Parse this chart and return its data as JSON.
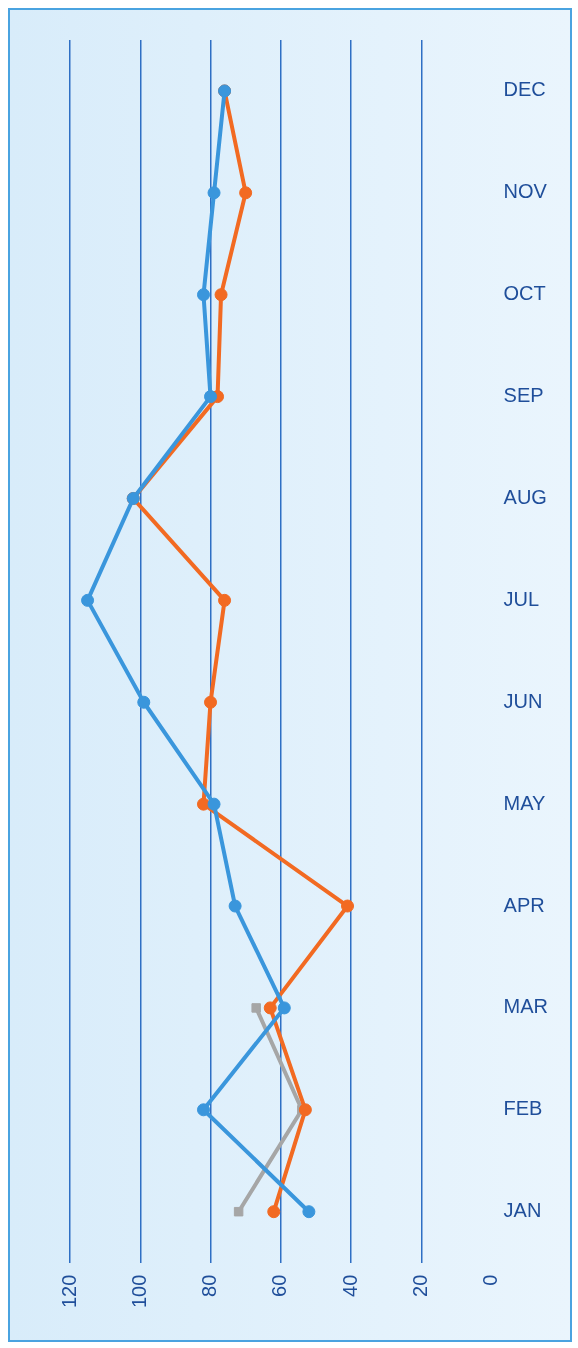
{
  "chart_data": {
    "type": "line",
    "orientation": "horizontal",
    "categories": [
      "DEC",
      "NOV",
      "OCT",
      "SEP",
      "AUG",
      "JUL",
      "JUN",
      "MAY",
      "APR",
      "MAR",
      "FEB",
      "JAN"
    ],
    "series": [
      {
        "color": "#3a96dc",
        "marker": "circle",
        "values": [
          76,
          79,
          82,
          80,
          102,
          115,
          99,
          79,
          73,
          59,
          82,
          52
        ]
      },
      {
        "color": "#f26a22",
        "marker": "circle",
        "values": [
          76,
          70,
          77,
          78,
          102,
          76,
          80,
          82,
          41,
          63,
          53,
          62
        ]
      },
      {
        "color": "#a6a6a6",
        "marker": "square",
        "values": [
          null,
          null,
          null,
          null,
          null,
          null,
          null,
          null,
          null,
          67,
          54,
          72
        ]
      }
    ],
    "xlim": [
      120,
      0
    ],
    "xticks": [
      0,
      20,
      40,
      60,
      80,
      100,
      120
    ],
    "grid": "x",
    "legend": false
  }
}
